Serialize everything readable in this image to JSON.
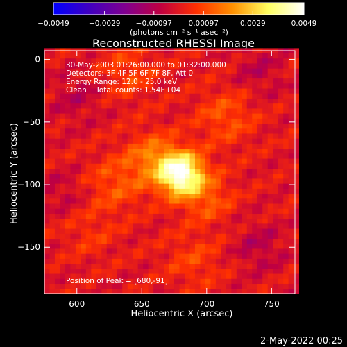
{
  "chart_data": {
    "type": "heatmap",
    "title": "Reconstructed RHESSI Image",
    "xlabel": "Heliocentric X (arcsec)",
    "ylabel": "Heliocentric Y (arcsec)",
    "xlim": [
      575,
      768
    ],
    "ylim": [
      -187,
      7
    ],
    "x_ticks": [
      600,
      650,
      700,
      750
    ],
    "y_ticks": [
      0,
      -50,
      -100,
      -150
    ],
    "x_tick_labels": [
      "600",
      "650",
      "700",
      "750"
    ],
    "y_tick_labels": [
      "0",
      "−50",
      "−100",
      "−150"
    ],
    "colorbar": {
      "range": [
        -0.0049,
        0.0049
      ],
      "ticks": [
        -0.0049,
        -0.0029,
        -0.00097,
        0.00097,
        0.0029,
        0.0049
      ],
      "tick_labels": [
        "−0.0049",
        "−0.0029",
        "−0.00097",
        "0.00097",
        "0.0029",
        "0.0049"
      ],
      "unit_label": "(photons cm⁻² s⁻¹ asec⁻²)",
      "colors": [
        "#0000ff",
        "#4000c0",
        "#800090",
        "#c00040",
        "#ff3000",
        "#ff9000",
        "#ffff60",
        "#ffffff"
      ]
    },
    "annotations": [
      "30-May-2003 01:26:00.000 to 01:32:00.000",
      "Detectors: 3F 4F 5F 6F 7F 8F, Att 0",
      "Energy Range: 12.0 - 25.0 keV",
      "Clean    Total counts: 1.54E+04"
    ],
    "peak_label": "Position of Peak = [680,-91]",
    "peak": {
      "x": 680,
      "y": -91,
      "value": 0.0049
    },
    "sources": [
      {
        "x": 680,
        "y": -91,
        "sigma": 12,
        "amp": 0.0049
      },
      {
        "x": 658,
        "y": -78,
        "sigma": 14,
        "amp": 0.0016
      },
      {
        "x": 700,
        "y": -110,
        "sigma": 14,
        "amp": 0.0012
      },
      {
        "x": 630,
        "y": -100,
        "sigma": 16,
        "amp": 0.0011
      },
      {
        "x": 715,
        "y": -45,
        "sigma": 16,
        "amp": 0.0011
      },
      {
        "x": 640,
        "y": -10,
        "sigma": 15,
        "amp": 0.0009
      },
      {
        "x": 690,
        "y": -160,
        "sigma": 16,
        "amp": 0.0008
      },
      {
        "x": 610,
        "y": -140,
        "sigma": 14,
        "amp": 0.0006
      },
      {
        "x": 740,
        "y": -150,
        "sigma": 14,
        "amp": -0.0008
      },
      {
        "x": 600,
        "y": -30,
        "sigma": 14,
        "amp": -0.0007
      },
      {
        "x": 590,
        "y": -105,
        "sigma": 12,
        "amp": -0.0006
      },
      {
        "x": 740,
        "y": -10,
        "sigma": 14,
        "amp": -0.0007
      }
    ]
  },
  "footer": {
    "date": "2-May-2022 00:25"
  }
}
